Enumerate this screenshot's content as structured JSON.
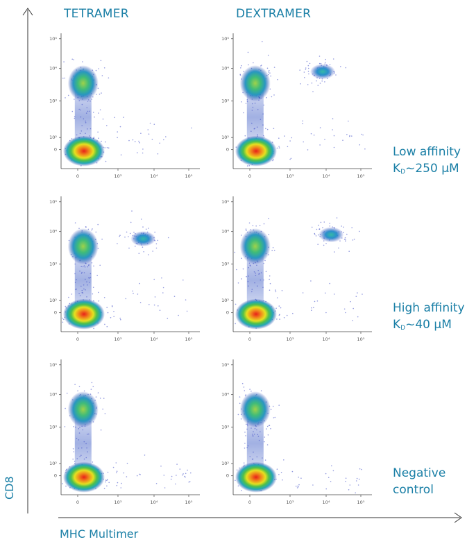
{
  "chart_data": {
    "type": "scatter",
    "columns": [
      "TETRAMER",
      "DEXTRAMER"
    ],
    "xlabel": "MHC Multimer",
    "ylabel": "CD8",
    "scale": "biexponential",
    "x_ticks": [
      "0",
      "10³",
      "10⁴",
      "10⁵"
    ],
    "y_ticks": [
      "0",
      "10²",
      "10³",
      "10⁴",
      "10⁵"
    ],
    "rows": [
      {
        "label_line1": "Low affinity",
        "label_k": "K",
        "label_k_sub": "D",
        "label_line2": "~250 μM",
        "panels": [
          {
            "column": "TETRAMER",
            "multimer_positive_cluster": null
          },
          {
            "column": "DEXTRAMER",
            "multimer_positive_cluster": {
              "x": 8000,
              "y": 8000
            }
          }
        ]
      },
      {
        "label_line1": "High affinity",
        "label_k": "K",
        "label_k_sub": "D",
        "label_line2": "~40 μM",
        "panels": [
          {
            "column": "TETRAMER",
            "multimer_positive_cluster": {
              "x": 5000,
              "y": 6000
            }
          },
          {
            "column": "DEXTRAMER",
            "multimer_positive_cluster": {
              "x": 14000,
              "y": 8000
            }
          }
        ]
      },
      {
        "label_line1": "Negative",
        "label_k": "",
        "label_k_sub": "",
        "label_line2": "control",
        "panels": [
          {
            "column": "TETRAMER",
            "multimer_positive_cluster": null
          },
          {
            "column": "DEXTRAMER",
            "multimer_positive_cluster": null
          }
        ]
      }
    ]
  }
}
